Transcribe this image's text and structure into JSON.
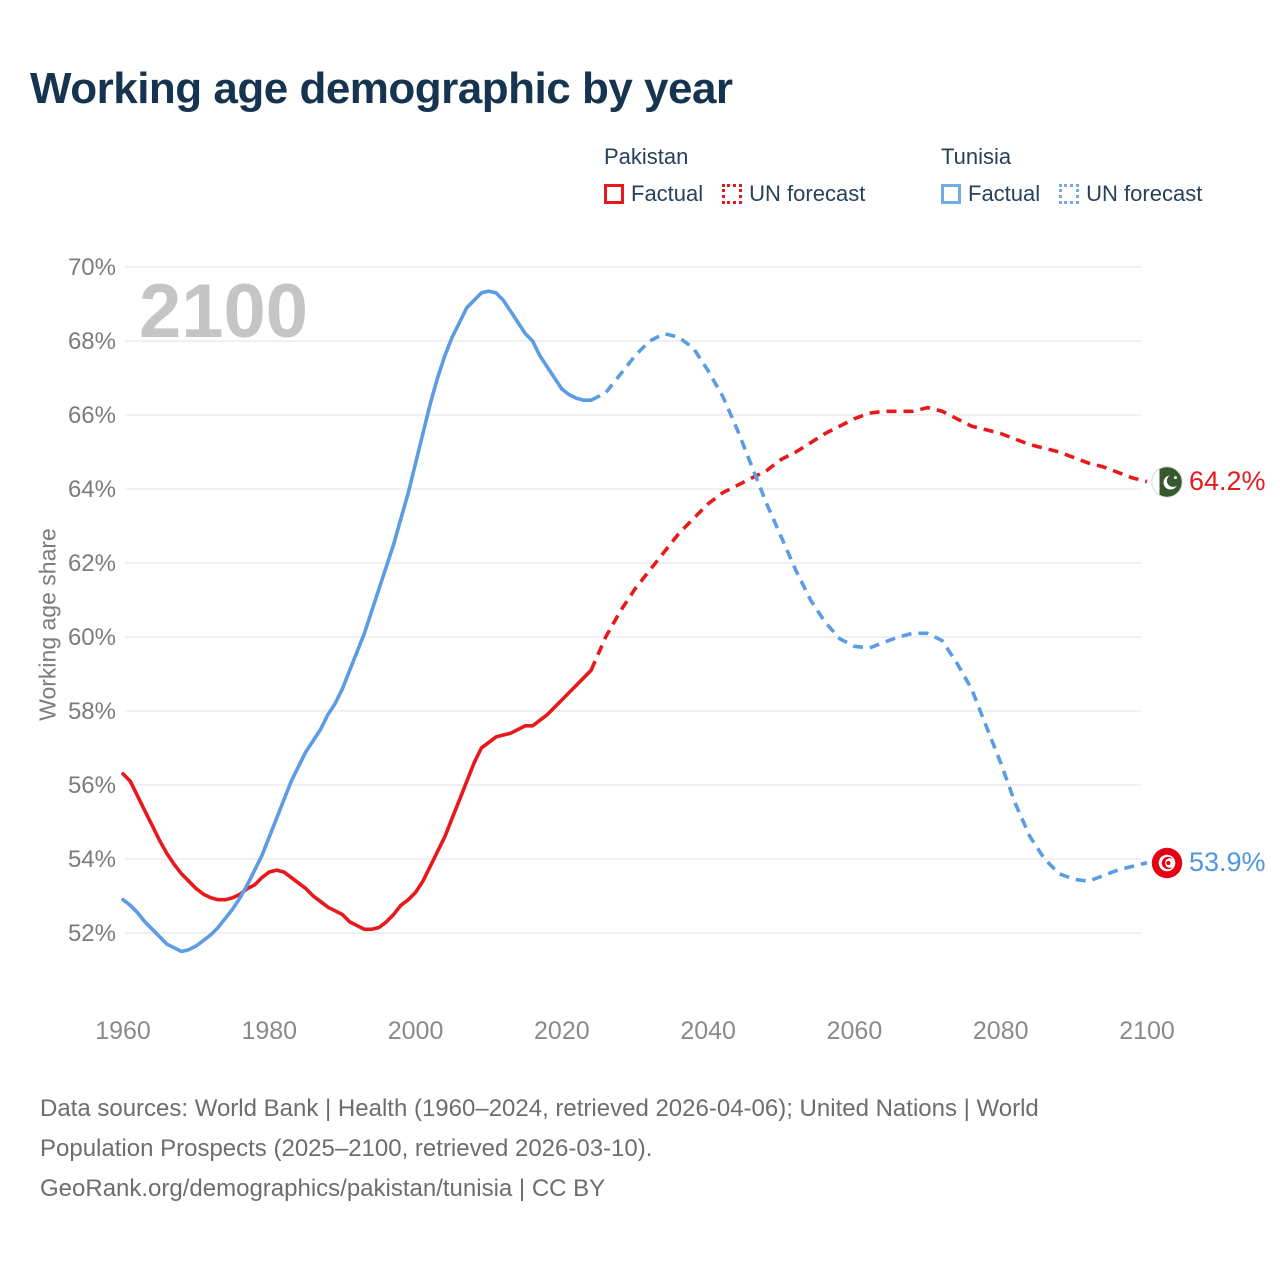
{
  "title": "Working age demographic by year",
  "watermark": "2100",
  "legend": {
    "groups": [
      {
        "name": "Pakistan",
        "color": "#e8191c",
        "items": [
          "Factual",
          "UN forecast"
        ]
      },
      {
        "name": "Tunisia",
        "color": "#5b9ce4",
        "items": [
          "Factual",
          "UN forecast"
        ]
      }
    ]
  },
  "chart_data": {
    "type": "line",
    "title": "Working age demographic by year",
    "xlabel": "",
    "ylabel": "Working age share",
    "xlim": [
      1960,
      2100
    ],
    "ylim": [
      51,
      70.5
    ],
    "grid": "horizontal-only",
    "legend_position": "top-right",
    "x_ticks": [
      1960,
      1980,
      2000,
      2020,
      2040,
      2060,
      2080,
      2100
    ],
    "y_ticks": [
      52,
      54,
      56,
      58,
      60,
      62,
      64,
      66,
      68,
      70
    ],
    "y_tick_suffix": "%",
    "series": [
      {
        "name": "Pakistan Factual",
        "style": "solid",
        "color": "#e8191c",
        "points": [
          [
            1960,
            56.3
          ],
          [
            1961,
            56.1
          ],
          [
            1962,
            55.7
          ],
          [
            1963,
            55.3
          ],
          [
            1964,
            54.9
          ],
          [
            1965,
            54.5
          ],
          [
            1966,
            54.15
          ],
          [
            1967,
            53.85
          ],
          [
            1968,
            53.6
          ],
          [
            1969,
            53.4
          ],
          [
            1970,
            53.2
          ],
          [
            1971,
            53.05
          ],
          [
            1972,
            52.95
          ],
          [
            1973,
            52.9
          ],
          [
            1974,
            52.9
          ],
          [
            1975,
            52.95
          ],
          [
            1976,
            53.05
          ],
          [
            1977,
            53.2
          ],
          [
            1978,
            53.3
          ],
          [
            1979,
            53.5
          ],
          [
            1980,
            53.65
          ],
          [
            1981,
            53.7
          ],
          [
            1982,
            53.65
          ],
          [
            1983,
            53.5
          ],
          [
            1984,
            53.35
          ],
          [
            1985,
            53.2
          ],
          [
            1986,
            53.0
          ],
          [
            1987,
            52.85
          ],
          [
            1988,
            52.7
          ],
          [
            1989,
            52.6
          ],
          [
            1990,
            52.5
          ],
          [
            1991,
            52.3
          ],
          [
            1992,
            52.2
          ],
          [
            1993,
            52.1
          ],
          [
            1994,
            52.1
          ],
          [
            1995,
            52.15
          ],
          [
            1996,
            52.3
          ],
          [
            1997,
            52.5
          ],
          [
            1998,
            52.75
          ],
          [
            1999,
            52.9
          ],
          [
            2000,
            53.1
          ],
          [
            2001,
            53.4
          ],
          [
            2002,
            53.8
          ],
          [
            2003,
            54.2
          ],
          [
            2004,
            54.6
          ],
          [
            2005,
            55.1
          ],
          [
            2006,
            55.6
          ],
          [
            2007,
            56.1
          ],
          [
            2008,
            56.6
          ],
          [
            2009,
            57.0
          ],
          [
            2010,
            57.15
          ],
          [
            2011,
            57.3
          ],
          [
            2012,
            57.35
          ],
          [
            2013,
            57.4
          ],
          [
            2014,
            57.5
          ],
          [
            2015,
            57.6
          ],
          [
            2016,
            57.6
          ],
          [
            2017,
            57.75
          ],
          [
            2018,
            57.9
          ],
          [
            2019,
            58.1
          ],
          [
            2020,
            58.3
          ],
          [
            2021,
            58.5
          ],
          [
            2022,
            58.7
          ],
          [
            2023,
            58.9
          ],
          [
            2024,
            59.1
          ]
        ]
      },
      {
        "name": "Pakistan UN forecast",
        "style": "dashed",
        "color": "#e8191c",
        "points": [
          [
            2024,
            59.1
          ],
          [
            2026,
            60.0
          ],
          [
            2028,
            60.7
          ],
          [
            2030,
            61.3
          ],
          [
            2032,
            61.8
          ],
          [
            2034,
            62.3
          ],
          [
            2036,
            62.8
          ],
          [
            2038,
            63.2
          ],
          [
            2040,
            63.6
          ],
          [
            2042,
            63.9
          ],
          [
            2044,
            64.1
          ],
          [
            2046,
            64.3
          ],
          [
            2048,
            64.5
          ],
          [
            2050,
            64.8
          ],
          [
            2052,
            65.0
          ],
          [
            2054,
            65.25
          ],
          [
            2056,
            65.5
          ],
          [
            2058,
            65.7
          ],
          [
            2060,
            65.9
          ],
          [
            2062,
            66.05
          ],
          [
            2064,
            66.1
          ],
          [
            2066,
            66.1
          ],
          [
            2068,
            66.1
          ],
          [
            2070,
            66.2
          ],
          [
            2072,
            66.1
          ],
          [
            2074,
            65.9
          ],
          [
            2076,
            65.7
          ],
          [
            2078,
            65.6
          ],
          [
            2080,
            65.5
          ],
          [
            2082,
            65.35
          ],
          [
            2084,
            65.2
          ],
          [
            2086,
            65.1
          ],
          [
            2088,
            65.0
          ],
          [
            2090,
            64.85
          ],
          [
            2092,
            64.7
          ],
          [
            2094,
            64.6
          ],
          [
            2096,
            64.45
          ],
          [
            2098,
            64.3
          ],
          [
            2100,
            64.2
          ]
        ]
      },
      {
        "name": "Tunisia Factual",
        "style": "solid",
        "color": "#5b9ce4",
        "points": [
          [
            1960,
            52.9
          ],
          [
            1961,
            52.75
          ],
          [
            1962,
            52.55
          ],
          [
            1963,
            52.3
          ],
          [
            1964,
            52.1
          ],
          [
            1965,
            51.9
          ],
          [
            1966,
            51.7
          ],
          [
            1967,
            51.6
          ],
          [
            1968,
            51.5
          ],
          [
            1969,
            51.55
          ],
          [
            1970,
            51.65
          ],
          [
            1971,
            51.8
          ],
          [
            1972,
            51.95
          ],
          [
            1973,
            52.15
          ],
          [
            1974,
            52.4
          ],
          [
            1975,
            52.65
          ],
          [
            1976,
            52.95
          ],
          [
            1977,
            53.3
          ],
          [
            1978,
            53.7
          ],
          [
            1979,
            54.1
          ],
          [
            1980,
            54.6
          ],
          [
            1981,
            55.1
          ],
          [
            1982,
            55.6
          ],
          [
            1983,
            56.1
          ],
          [
            1984,
            56.5
          ],
          [
            1985,
            56.9
          ],
          [
            1986,
            57.2
          ],
          [
            1987,
            57.5
          ],
          [
            1988,
            57.9
          ],
          [
            1989,
            58.2
          ],
          [
            1990,
            58.6
          ],
          [
            1991,
            59.1
          ],
          [
            1992,
            59.6
          ],
          [
            1993,
            60.1
          ],
          [
            1994,
            60.7
          ],
          [
            1995,
            61.3
          ],
          [
            1996,
            61.9
          ],
          [
            1997,
            62.5
          ],
          [
            1998,
            63.2
          ],
          [
            1999,
            63.9
          ],
          [
            2000,
            64.7
          ],
          [
            2001,
            65.5
          ],
          [
            2002,
            66.3
          ],
          [
            2003,
            67.0
          ],
          [
            2004,
            67.6
          ],
          [
            2005,
            68.1
          ],
          [
            2006,
            68.5
          ],
          [
            2007,
            68.9
          ],
          [
            2008,
            69.1
          ],
          [
            2009,
            69.3
          ],
          [
            2010,
            69.35
          ],
          [
            2011,
            69.3
          ],
          [
            2012,
            69.1
          ],
          [
            2013,
            68.8
          ],
          [
            2014,
            68.5
          ],
          [
            2015,
            68.2
          ],
          [
            2016,
            68.0
          ],
          [
            2017,
            67.6
          ],
          [
            2018,
            67.3
          ],
          [
            2019,
            67.0
          ],
          [
            2020,
            66.7
          ],
          [
            2021,
            66.55
          ],
          [
            2022,
            66.45
          ],
          [
            2023,
            66.4
          ],
          [
            2024,
            66.4
          ]
        ]
      },
      {
        "name": "Tunisia UN forecast",
        "style": "dashed",
        "color": "#5b9ce4",
        "points": [
          [
            2024,
            66.4
          ],
          [
            2026,
            66.6
          ],
          [
            2028,
            67.1
          ],
          [
            2030,
            67.6
          ],
          [
            2032,
            68.0
          ],
          [
            2034,
            68.2
          ],
          [
            2036,
            68.1
          ],
          [
            2038,
            67.8
          ],
          [
            2040,
            67.2
          ],
          [
            2042,
            66.5
          ],
          [
            2044,
            65.6
          ],
          [
            2046,
            64.6
          ],
          [
            2048,
            63.6
          ],
          [
            2050,
            62.7
          ],
          [
            2052,
            61.8
          ],
          [
            2054,
            61.0
          ],
          [
            2056,
            60.4
          ],
          [
            2058,
            59.95
          ],
          [
            2060,
            59.75
          ],
          [
            2062,
            59.7
          ],
          [
            2064,
            59.85
          ],
          [
            2066,
            60.0
          ],
          [
            2068,
            60.1
          ],
          [
            2070,
            60.1
          ],
          [
            2072,
            59.9
          ],
          [
            2074,
            59.3
          ],
          [
            2076,
            58.6
          ],
          [
            2078,
            57.6
          ],
          [
            2080,
            56.6
          ],
          [
            2082,
            55.5
          ],
          [
            2084,
            54.6
          ],
          [
            2086,
            54.0
          ],
          [
            2088,
            53.6
          ],
          [
            2090,
            53.45
          ],
          [
            2092,
            53.4
          ],
          [
            2094,
            53.55
          ],
          [
            2096,
            53.7
          ],
          [
            2098,
            53.8
          ],
          [
            2100,
            53.9
          ]
        ]
      }
    ],
    "end_labels": [
      {
        "series": "Pakistan",
        "flag": "pakistan",
        "value_label": "64.2%",
        "year": 2100,
        "value": 64.2
      },
      {
        "series": "Tunisia",
        "flag": "tunisia",
        "value_label": "53.9%",
        "year": 2100,
        "value": 53.9
      }
    ]
  },
  "footer": {
    "lines": [
      "Data sources: World Bank | Health (1960–2024, retrieved 2026-04-06); United Nations | World",
      "Population Prospects (2025–2100, retrieved 2026-03-10).",
      "GeoRank.org/demographics/pakistan/tunisia | CC BY"
    ]
  }
}
